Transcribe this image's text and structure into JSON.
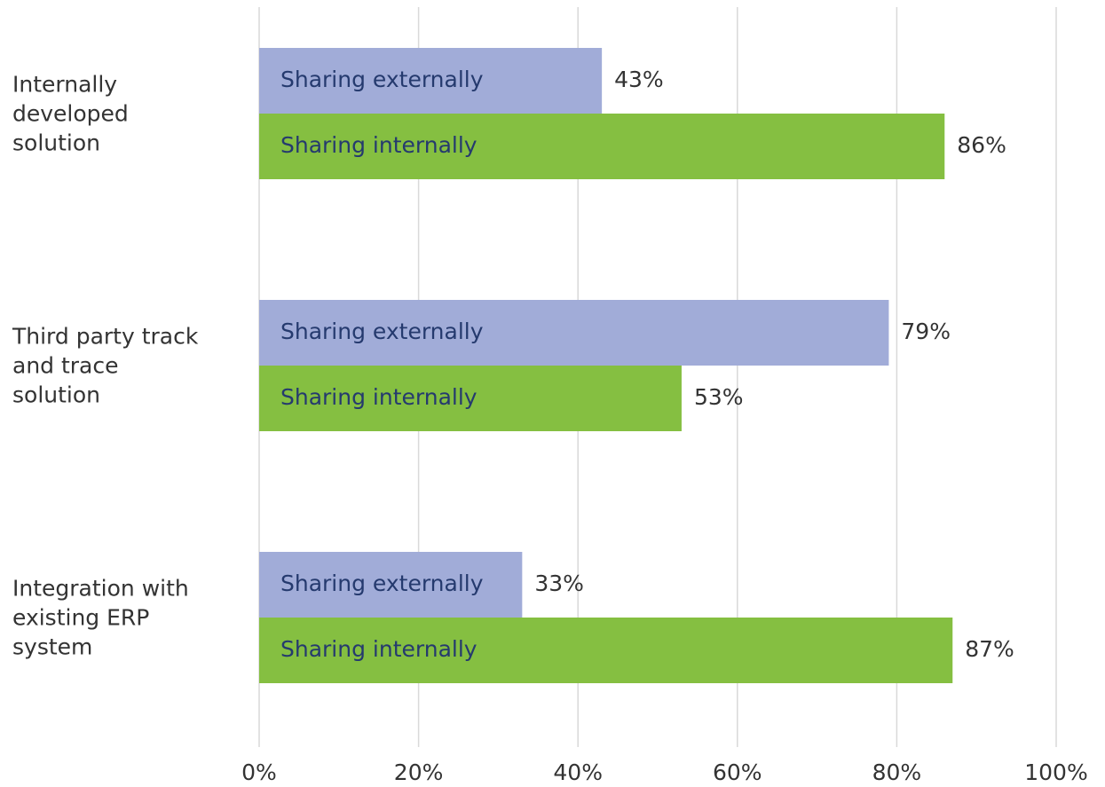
{
  "chart_data": {
    "type": "hbar",
    "categories": [
      "Internally\ndeveloped\nsolution",
      "Third party track\nand trace\nsolution",
      "Integration with\nexisting ERP\nsystem"
    ],
    "series": [
      {
        "name": "Sharing externally",
        "color": "#a1acd8",
        "values": [
          43,
          79,
          33
        ],
        "value_labels": [
          "43%",
          "79%",
          "33%"
        ]
      },
      {
        "name": "Sharing internally",
        "color": "#85bf41",
        "values": [
          86,
          53,
          87
        ],
        "value_labels": [
          "86%",
          "53%",
          "87%"
        ]
      }
    ],
    "xlim": [
      0,
      100
    ],
    "xticks": [
      {
        "value": 0,
        "label": "0%"
      },
      {
        "value": 20,
        "label": "20%"
      },
      {
        "value": 40,
        "label": "40%"
      },
      {
        "value": 60,
        "label": "60%"
      },
      {
        "value": 80,
        "label": "80%"
      },
      {
        "value": 100,
        "label": "100%"
      }
    ],
    "grid": true
  }
}
